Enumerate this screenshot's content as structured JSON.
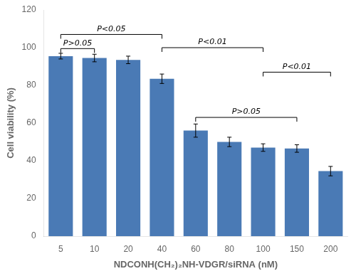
{
  "chart_data": {
    "type": "bar",
    "categories": [
      "5",
      "10",
      "20",
      "40",
      "60",
      "80",
      "100",
      "150",
      "200"
    ],
    "values": [
      95.5,
      94.5,
      93.5,
      83.5,
      56.0,
      50.0,
      47.0,
      46.5,
      34.5
    ],
    "errors": [
      1.5,
      2.0,
      2.0,
      2.5,
      3.5,
      2.5,
      2.0,
      2.0,
      2.5
    ],
    "color": "#4a7ab5",
    "ylabel": "Cell viability (%)",
    "xlabel": "NDCONH(CH₂)₂NH-VDGR/siRNA (nM)",
    "ylim": [
      0,
      120
    ],
    "yticks": [
      0,
      20,
      40,
      60,
      80,
      100,
      120
    ],
    "grid": false,
    "annotations": [
      {
        "from": "5",
        "to": "10",
        "y": 99.5,
        "text": "P>0.05"
      },
      {
        "from": "5",
        "to": "40",
        "y": 107.0,
        "text": "P<0.05"
      },
      {
        "from": "40",
        "to": "100",
        "y": 100.0,
        "text": "P<0.01"
      },
      {
        "from": "60",
        "to": "150",
        "y": 63.0,
        "text": "P>0.05"
      },
      {
        "from": "100",
        "to": "200",
        "y": 87.0,
        "text": "P<0.01"
      }
    ]
  }
}
